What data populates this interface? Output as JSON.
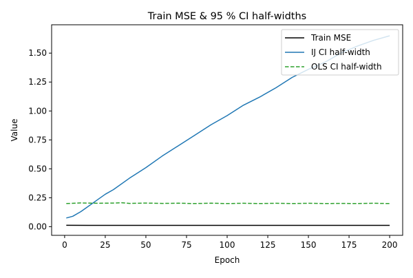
{
  "chart_data": {
    "type": "line",
    "title": "Train MSE & 95 % CI half-widths",
    "xlabel": "Epoch",
    "ylabel": "Value",
    "xlim": [
      -8,
      208
    ],
    "ylim": [
      -0.075,
      1.745
    ],
    "xticks": [
      0,
      25,
      50,
      75,
      100,
      125,
      150,
      175,
      200
    ],
    "yticks": [
      0.0,
      0.25,
      0.5,
      0.75,
      1.0,
      1.25,
      1.5
    ],
    "ytick_labels": [
      "0.00",
      "0.25",
      "0.50",
      "0.75",
      "1.00",
      "1.25",
      "1.50"
    ],
    "grid": false,
    "legend_position": "top-right",
    "series": [
      {
        "name": "Train MSE",
        "color": "#000000",
        "style": "solid",
        "x": [
          1,
          25,
          50,
          75,
          100,
          125,
          150,
          175,
          200
        ],
        "y": [
          0.012,
          0.011,
          0.011,
          0.011,
          0.011,
          0.011,
          0.011,
          0.011,
          0.011
        ]
      },
      {
        "name": "IJ CI half-width",
        "color": "#1f77b4",
        "style": "solid",
        "x": [
          1,
          5,
          10,
          15,
          20,
          25,
          30,
          40,
          50,
          60,
          70,
          80,
          90,
          100,
          110,
          120,
          130,
          140,
          150,
          160,
          170,
          180,
          190,
          200
        ],
        "y": [
          0.075,
          0.09,
          0.13,
          0.18,
          0.23,
          0.28,
          0.32,
          0.42,
          0.51,
          0.61,
          0.7,
          0.79,
          0.88,
          0.96,
          1.05,
          1.12,
          1.2,
          1.29,
          1.36,
          1.42,
          1.5,
          1.56,
          1.61,
          1.65
        ]
      },
      {
        "name": "OLS CI half-width",
        "color": "#2ca02c",
        "style": "dashed",
        "x": [
          1,
          10,
          20,
          30,
          35,
          40,
          50,
          60,
          70,
          80,
          90,
          100,
          110,
          120,
          130,
          140,
          150,
          160,
          170,
          180,
          190,
          200
        ],
        "y": [
          0.2,
          0.205,
          0.202,
          0.204,
          0.207,
          0.201,
          0.204,
          0.201,
          0.203,
          0.2,
          0.203,
          0.2,
          0.202,
          0.2,
          0.202,
          0.2,
          0.202,
          0.2,
          0.201,
          0.2,
          0.202,
          0.2
        ]
      }
    ]
  }
}
